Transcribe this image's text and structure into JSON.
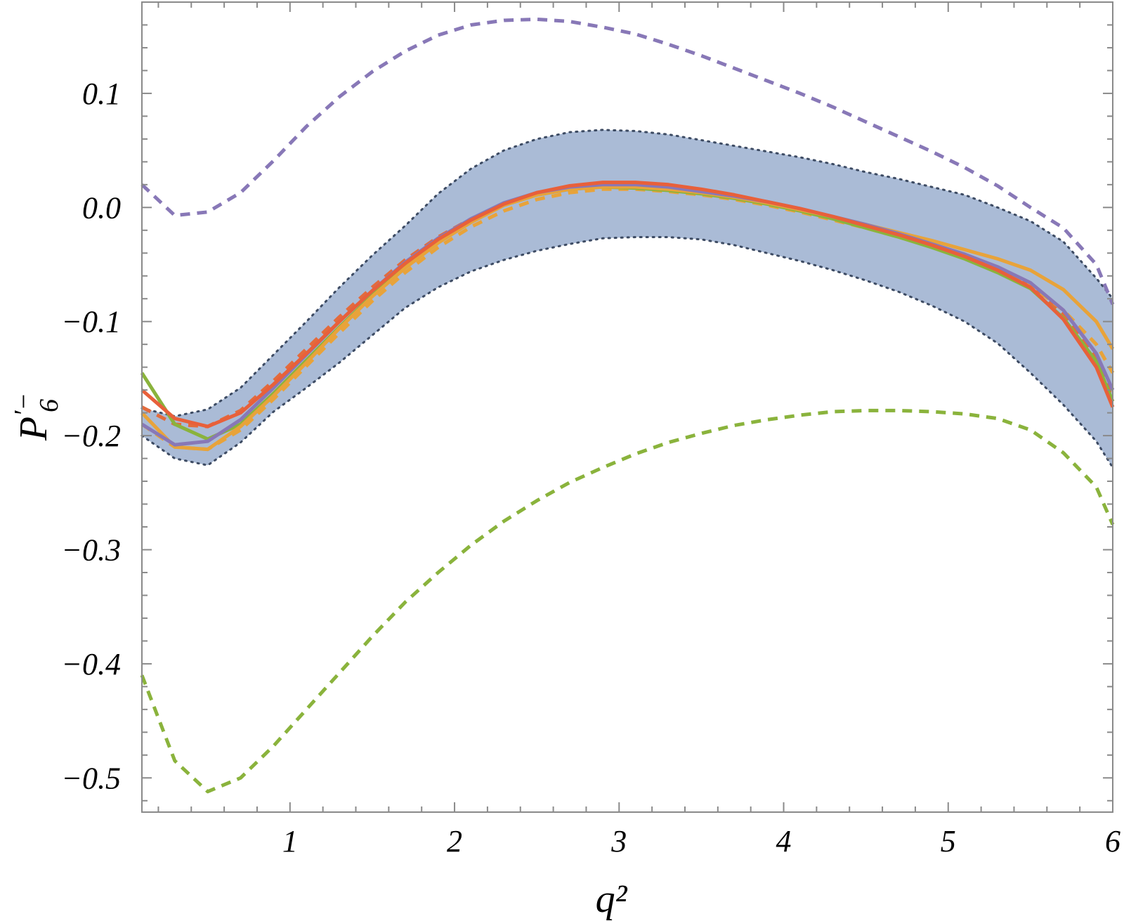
{
  "chart_data": {
    "type": "line",
    "xlabel": "q²",
    "ylabel_base": "P",
    "ylabel_sub": "6",
    "ylabel_sup": "′−",
    "xlim": [
      0.1,
      6.0
    ],
    "ylim": [
      -0.53,
      0.18
    ],
    "xticks": [
      {
        "value": 1,
        "label": "1"
      },
      {
        "value": 2,
        "label": "2"
      },
      {
        "value": 3,
        "label": "3"
      },
      {
        "value": 4,
        "label": "4"
      },
      {
        "value": 5,
        "label": "5"
      },
      {
        "value": 6,
        "label": "6"
      }
    ],
    "yticks": [
      {
        "value": 0.1,
        "label": "0.1"
      },
      {
        "value": 0.0,
        "label": "0.0"
      },
      {
        "value": -0.1,
        "label": "−0.1"
      },
      {
        "value": -0.2,
        "label": "−0.2"
      },
      {
        "value": -0.3,
        "label": "−0.3"
      },
      {
        "value": -0.4,
        "label": "−0.4"
      },
      {
        "value": -0.5,
        "label": "−0.5"
      }
    ],
    "grid": false,
    "band": {
      "fill": "#aabbd6",
      "edge_color": "#3d4b63",
      "x": [
        0.1,
        0.3,
        0.5,
        0.7,
        0.9,
        1.1,
        1.3,
        1.5,
        1.7,
        1.9,
        2.1,
        2.3,
        2.5,
        2.7,
        2.9,
        3.1,
        3.3,
        3.5,
        3.7,
        3.9,
        4.1,
        4.3,
        4.5,
        4.7,
        4.9,
        5.1,
        5.3,
        5.5,
        5.7,
        5.9,
        6.0
      ],
      "upper": [
        -0.176,
        -0.183,
        -0.177,
        -0.158,
        -0.129,
        -0.1,
        -0.07,
        -0.042,
        -0.016,
        0.012,
        0.034,
        0.05,
        0.06,
        0.066,
        0.068,
        0.067,
        0.064,
        0.059,
        0.054,
        0.049,
        0.044,
        0.038,
        0.031,
        0.025,
        0.018,
        0.011,
        0.0,
        -0.012,
        -0.03,
        -0.062,
        -0.08
      ],
      "lower": [
        -0.2,
        -0.22,
        -0.226,
        -0.206,
        -0.179,
        -0.158,
        -0.136,
        -0.112,
        -0.088,
        -0.07,
        -0.056,
        -0.046,
        -0.038,
        -0.032,
        -0.027,
        -0.026,
        -0.026,
        -0.028,
        -0.033,
        -0.04,
        -0.047,
        -0.055,
        -0.064,
        -0.074,
        -0.086,
        -0.1,
        -0.119,
        -0.145,
        -0.173,
        -0.205,
        -0.228
      ]
    },
    "series": [
      {
        "color": "#8878b7",
        "dash": true,
        "x": [
          0.1,
          0.3,
          0.5,
          0.7,
          0.9,
          1.1,
          1.3,
          1.5,
          1.7,
          1.9,
          2.1,
          2.3,
          2.5,
          2.7,
          2.9,
          3.1,
          3.3,
          3.5,
          3.7,
          3.9,
          4.1,
          4.3,
          4.5,
          4.7,
          4.9,
          5.1,
          5.3,
          5.5,
          5.7,
          5.9,
          6.0
        ],
        "y": [
          0.02,
          -0.007,
          -0.004,
          0.013,
          0.041,
          0.071,
          0.097,
          0.119,
          0.137,
          0.151,
          0.16,
          0.164,
          0.165,
          0.163,
          0.158,
          0.152,
          0.143,
          0.133,
          0.122,
          0.111,
          0.1,
          0.088,
          0.075,
          0.062,
          0.049,
          0.035,
          0.019,
          0.0,
          -0.018,
          -0.05,
          -0.085
        ]
      },
      {
        "color": "#8ab33c",
        "dash": true,
        "x": [
          0.1,
          0.3,
          0.5,
          0.7,
          0.9,
          1.1,
          1.3,
          1.5,
          1.7,
          1.9,
          2.1,
          2.3,
          2.5,
          2.7,
          2.9,
          3.1,
          3.3,
          3.5,
          3.7,
          3.9,
          4.1,
          4.3,
          4.5,
          4.7,
          4.9,
          5.1,
          5.3,
          5.5,
          5.7,
          5.9,
          6.0
        ],
        "y": [
          -0.41,
          -0.485,
          -0.512,
          -0.5,
          -0.472,
          -0.44,
          -0.408,
          -0.376,
          -0.346,
          -0.32,
          -0.296,
          -0.275,
          -0.257,
          -0.241,
          -0.228,
          -0.216,
          -0.206,
          -0.198,
          -0.191,
          -0.186,
          -0.182,
          -0.179,
          -0.178,
          -0.178,
          -0.179,
          -0.181,
          -0.185,
          -0.195,
          -0.215,
          -0.245,
          -0.278
        ]
      },
      {
        "color": "#e36b3c",
        "dash": true,
        "x": [
          0.1,
          0.3,
          0.5,
          0.7,
          0.9,
          1.1,
          1.3,
          1.5,
          1.7,
          1.9,
          2.1,
          2.3,
          2.5,
          2.7,
          2.9,
          3.1,
          3.3,
          3.5,
          3.7,
          3.9,
          4.1,
          4.3,
          4.5,
          4.7,
          4.9,
          5.1,
          5.3,
          5.5,
          5.7,
          5.9,
          6.0
        ],
        "y": [
          -0.175,
          -0.19,
          -0.192,
          -0.178,
          -0.152,
          -0.124,
          -0.096,
          -0.07,
          -0.046,
          -0.026,
          -0.01,
          0.003,
          0.012,
          0.017,
          0.019,
          0.018,
          0.016,
          0.013,
          0.009,
          0.004,
          -0.002,
          -0.009,
          -0.016,
          -0.024,
          -0.033,
          -0.043,
          -0.054,
          -0.068,
          -0.094,
          -0.133,
          -0.168
        ]
      },
      {
        "color": "#e8a33a",
        "dash": true,
        "x": [
          0.1,
          0.3,
          0.5,
          0.7,
          0.9,
          1.1,
          1.3,
          1.5,
          1.7,
          1.9,
          2.1,
          2.3,
          2.5,
          2.7,
          2.9,
          3.1,
          3.3,
          3.5,
          3.7,
          3.9,
          4.1,
          4.3,
          4.5,
          4.7,
          4.9,
          5.1,
          5.3,
          5.5,
          5.7,
          5.9,
          6.0
        ],
        "y": [
          -0.19,
          -0.21,
          -0.212,
          -0.195,
          -0.168,
          -0.139,
          -0.11,
          -0.082,
          -0.057,
          -0.035,
          -0.017,
          -0.003,
          0.007,
          0.013,
          0.016,
          0.016,
          0.014,
          0.011,
          0.007,
          0.002,
          -0.004,
          -0.011,
          -0.018,
          -0.026,
          -0.034,
          -0.044,
          -0.055,
          -0.068,
          -0.09,
          -0.12,
          -0.145
        ]
      },
      {
        "color": "#8ab33c",
        "dash": false,
        "x": [
          0.1,
          0.3,
          0.5,
          0.7,
          0.9,
          1.1,
          1.3,
          1.5,
          1.7,
          1.9,
          2.1,
          2.3,
          2.5,
          2.7,
          2.9,
          3.1,
          3.3,
          3.5,
          3.7,
          3.9,
          4.1,
          4.3,
          4.5,
          4.7,
          4.9,
          5.1,
          5.3,
          5.5,
          5.7,
          5.9,
          6.0
        ],
        "y": [
          -0.145,
          -0.19,
          -0.203,
          -0.19,
          -0.163,
          -0.134,
          -0.105,
          -0.077,
          -0.052,
          -0.03,
          -0.012,
          0.002,
          0.011,
          0.016,
          0.018,
          0.017,
          0.015,
          0.012,
          0.008,
          0.003,
          -0.003,
          -0.01,
          -0.018,
          -0.026,
          -0.035,
          -0.045,
          -0.057,
          -0.071,
          -0.097,
          -0.135,
          -0.17
        ]
      },
      {
        "color": "#e8a33a",
        "dash": false,
        "x": [
          0.1,
          0.3,
          0.5,
          0.7,
          0.9,
          1.1,
          1.3,
          1.5,
          1.7,
          1.9,
          2.1,
          2.3,
          2.5,
          2.7,
          2.9,
          3.1,
          3.3,
          3.5,
          3.7,
          3.9,
          4.1,
          4.3,
          4.5,
          4.7,
          4.9,
          5.1,
          5.3,
          5.5,
          5.7,
          5.9,
          6.0
        ],
        "y": [
          -0.18,
          -0.21,
          -0.212,
          -0.192,
          -0.165,
          -0.136,
          -0.106,
          -0.078,
          -0.053,
          -0.031,
          -0.013,
          0.002,
          0.011,
          0.016,
          0.018,
          0.018,
          0.016,
          0.013,
          0.009,
          0.004,
          -0.002,
          -0.008,
          -0.015,
          -0.022,
          -0.029,
          -0.037,
          -0.045,
          -0.055,
          -0.072,
          -0.1,
          -0.124
        ]
      },
      {
        "color": "#8878b7",
        "dash": false,
        "x": [
          0.1,
          0.3,
          0.5,
          0.7,
          0.9,
          1.1,
          1.3,
          1.5,
          1.7,
          1.9,
          2.1,
          2.3,
          2.5,
          2.7,
          2.9,
          3.1,
          3.3,
          3.5,
          3.7,
          3.9,
          4.1,
          4.3,
          4.5,
          4.7,
          4.9,
          5.1,
          5.3,
          5.5,
          5.7,
          5.9,
          6.0
        ],
        "y": [
          -0.19,
          -0.208,
          -0.205,
          -0.186,
          -0.158,
          -0.129,
          -0.1,
          -0.073,
          -0.048,
          -0.027,
          -0.01,
          0.004,
          0.013,
          0.018,
          0.02,
          0.02,
          0.018,
          0.014,
          0.01,
          0.005,
          -0.001,
          -0.008,
          -0.015,
          -0.023,
          -0.032,
          -0.041,
          -0.052,
          -0.066,
          -0.09,
          -0.128,
          -0.16
        ]
      },
      {
        "color": "#e8603a",
        "dash": false,
        "x": [
          0.1,
          0.3,
          0.5,
          0.7,
          0.9,
          1.1,
          1.3,
          1.5,
          1.7,
          1.9,
          2.1,
          2.3,
          2.5,
          2.7,
          2.9,
          3.1,
          3.3,
          3.5,
          3.7,
          3.9,
          4.1,
          4.3,
          4.5,
          4.7,
          4.9,
          5.1,
          5.3,
          5.5,
          5.7,
          5.9,
          6.0
        ],
        "y": [
          -0.16,
          -0.185,
          -0.192,
          -0.18,
          -0.155,
          -0.128,
          -0.1,
          -0.073,
          -0.049,
          -0.028,
          -0.011,
          0.003,
          0.013,
          0.019,
          0.022,
          0.022,
          0.02,
          0.016,
          0.011,
          0.005,
          -0.001,
          -0.008,
          -0.016,
          -0.024,
          -0.033,
          -0.043,
          -0.055,
          -0.07,
          -0.098,
          -0.14,
          -0.175
        ]
      }
    ]
  }
}
